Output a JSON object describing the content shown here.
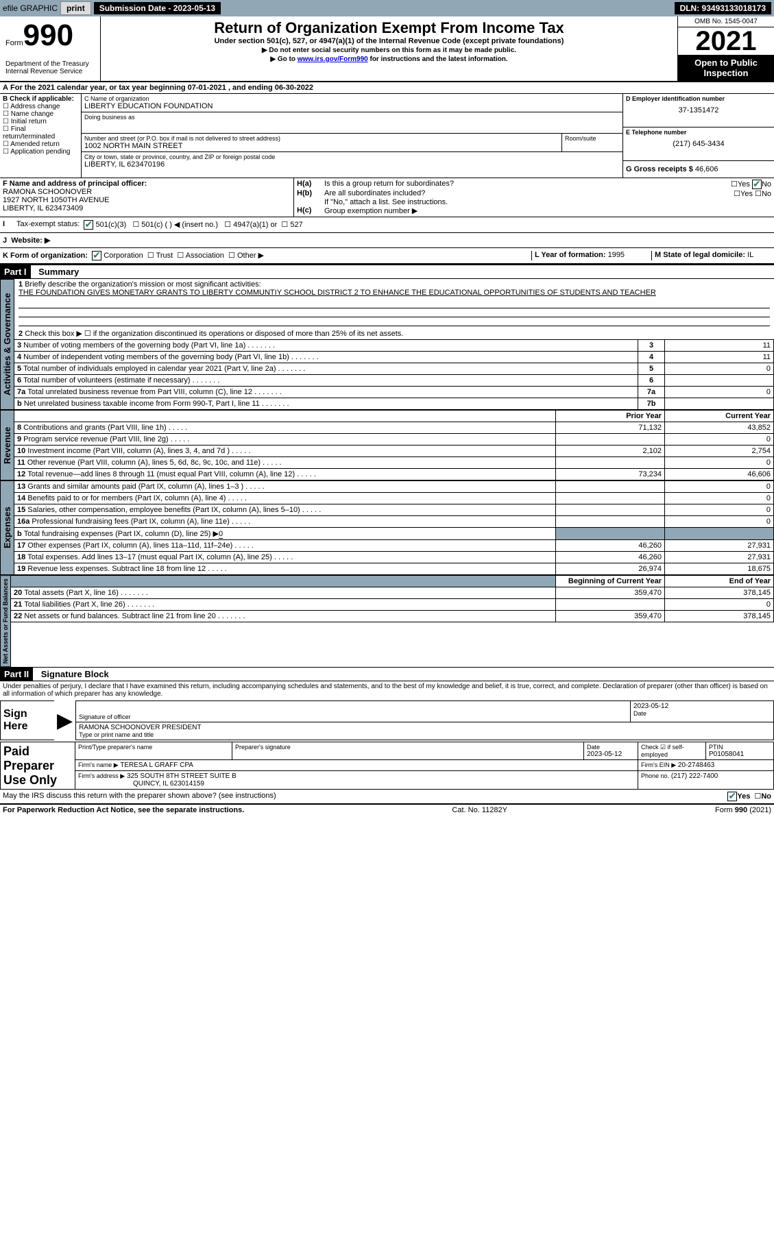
{
  "topbar": {
    "efile": "efile GRAPHIC",
    "print": "print",
    "sub_label": "Submission Date - 2023-05-13",
    "dln": "DLN: 93493133018173"
  },
  "header": {
    "form": "Form",
    "num": "990",
    "dept": "Department of the Treasury",
    "irs": "Internal Revenue Service",
    "title": "Return of Organization Exempt From Income Tax",
    "sub": "Under section 501(c), 527, or 4947(a)(1) of the Internal Revenue Code (except private foundations)",
    "note1": "▶ Do not enter social security numbers on this form as it may be made public.",
    "note2a": "▶ Go to ",
    "note2link": "www.irs.gov/Form990",
    "note2b": " for instructions and the latest information.",
    "omb": "OMB No. 1545-0047",
    "year": "2021",
    "open": "Open to Public Inspection"
  },
  "A": {
    "line": "For the 2021 calendar year, or tax year beginning 07-01-2021    , and ending 06-30-2022"
  },
  "B": {
    "label": "B Check if applicable:",
    "opts": [
      "Address change",
      "Name change",
      "Initial return",
      "Final return/terminated",
      "Amended return",
      "Application pending"
    ]
  },
  "C": {
    "label": "C Name of organization",
    "name": "LIBERTY EDUCATION FOUNDATION",
    "dba_label": "Doing business as",
    "dba": "",
    "addr_label": "Number and street (or P.O. box if mail is not delivered to street address)",
    "room": "Room/suite",
    "addr": "1002 NORTH MAIN STREET",
    "city_label": "City or town, state or province, country, and ZIP or foreign postal code",
    "city": "LIBERTY, IL  623470196"
  },
  "D": {
    "label": "D Employer identification number",
    "val": "37-1351472"
  },
  "E": {
    "label": "E Telephone number",
    "val": "(217) 645-3434"
  },
  "G": {
    "label": "G Gross receipts $",
    "val": "46,606"
  },
  "F": {
    "label": "F Name and address of principal officer:",
    "name": "RAMONA SCHOONOVER",
    "addr1": "1927 NORTH 1050TH AVENUE",
    "addr2": "LIBERTY, IL  623473409"
  },
  "H": {
    "a": "Is this a group return for subordinates?",
    "b": "Are all subordinates included?",
    "note": "If \"No,\" attach a list. See instructions.",
    "c": "Group exemption number ▶",
    "yes": "Yes",
    "no": "No"
  },
  "I": {
    "label": "Tax-exempt status:",
    "o1": "501(c)(3)",
    "o2": "501(c) (  ) ◀ (insert no.)",
    "o3": "4947(a)(1) or",
    "o4": "527"
  },
  "J": {
    "label": "Website: ▶"
  },
  "K": {
    "label": "K Form of organization:",
    "o1": "Corporation",
    "o2": "Trust",
    "o3": "Association",
    "o4": "Other ▶"
  },
  "L": {
    "label": "L Year of formation:",
    "val": "1995"
  },
  "M": {
    "label": "M State of legal domicile:",
    "val": "IL"
  },
  "part1": {
    "hdr": "Part I",
    "title": "Summary"
  },
  "s1": {
    "l1": "Briefly describe the organization's mission or most significant activities:",
    "mission": "THE FOUNDATION GIVES MONETARY GRANTS TO LIBERTY COMMUNTIY SCHOOL DISTRICT 2 TO ENHANCE THE EDUCATIONAL OPPORTUNITIES OF STUDENTS AND TEACHER",
    "l2": "Check this box ▶ ☐ if the organization discontinued its operations or disposed of more than 25% of its net assets.",
    "rows": [
      {
        "n": "3",
        "t": "Number of voting members of the governing body (Part VI, line 1a)",
        "box": "3",
        "v": "11"
      },
      {
        "n": "4",
        "t": "Number of independent voting members of the governing body (Part VI, line 1b)",
        "box": "4",
        "v": "11"
      },
      {
        "n": "5",
        "t": "Total number of individuals employed in calendar year 2021 (Part V, line 2a)",
        "box": "5",
        "v": "0"
      },
      {
        "n": "6",
        "t": "Total number of volunteers (estimate if necessary)",
        "box": "6",
        "v": ""
      },
      {
        "n": "7a",
        "t": "Total unrelated business revenue from Part VIII, column (C), line 12",
        "box": "7a",
        "v": "0"
      },
      {
        "n": "b",
        "t": "Net unrelated business taxable income from Form 990-T, Part I, line 11",
        "box": "7b",
        "v": ""
      }
    ],
    "py": "Prior Year",
    "cy": "Current Year",
    "rev": [
      {
        "n": "8",
        "t": "Contributions and grants (Part VIII, line 1h)",
        "p": "71,132",
        "c": "43,852"
      },
      {
        "n": "9",
        "t": "Program service revenue (Part VIII, line 2g)",
        "p": "",
        "c": "0"
      },
      {
        "n": "10",
        "t": "Investment income (Part VIII, column (A), lines 3, 4, and 7d )",
        "p": "2,102",
        "c": "2,754"
      },
      {
        "n": "11",
        "t": "Other revenue (Part VIII, column (A), lines 5, 6d, 8c, 9c, 10c, and 11e)",
        "p": "",
        "c": "0"
      },
      {
        "n": "12",
        "t": "Total revenue—add lines 8 through 11 (must equal Part VIII, column (A), line 12)",
        "p": "73,234",
        "c": "46,606"
      }
    ],
    "exp": [
      {
        "n": "13",
        "t": "Grants and similar amounts paid (Part IX, column (A), lines 1–3 )",
        "p": "",
        "c": "0"
      },
      {
        "n": "14",
        "t": "Benefits paid to or for members (Part IX, column (A), line 4)",
        "p": "",
        "c": "0"
      },
      {
        "n": "15",
        "t": "Salaries, other compensation, employee benefits (Part IX, column (A), lines 5–10)",
        "p": "",
        "c": "0"
      },
      {
        "n": "16a",
        "t": "Professional fundraising fees (Part IX, column (A), line 11e)",
        "p": "",
        "c": "0"
      },
      {
        "n": "b",
        "t": "Total fundraising expenses (Part IX, column (D), line 25) ▶",
        "sub": "0",
        "shade": true
      },
      {
        "n": "17",
        "t": "Other expenses (Part IX, column (A), lines 11a–11d, 11f–24e)",
        "p": "46,260",
        "c": "27,931"
      },
      {
        "n": "18",
        "t": "Total expenses. Add lines 13–17 (must equal Part IX, column (A), line 25)",
        "p": "46,260",
        "c": "27,931"
      },
      {
        "n": "19",
        "t": "Revenue less expenses. Subtract line 18 from line 12",
        "p": "26,974",
        "c": "18,675"
      }
    ],
    "bcy": "Beginning of Current Year",
    "ecy": "End of Year",
    "net": [
      {
        "n": "20",
        "t": "Total assets (Part X, line 16)",
        "p": "359,470",
        "c": "378,145"
      },
      {
        "n": "21",
        "t": "Total liabilities (Part X, line 26)",
        "p": "",
        "c": "0"
      },
      {
        "n": "22",
        "t": "Net assets or fund balances. Subtract line 21 from line 20",
        "p": "359,470",
        "c": "378,145"
      }
    ],
    "vtabs": [
      "Activities & Governance",
      "Revenue",
      "Expenses",
      "Net Assets or Fund Balances"
    ]
  },
  "part2": {
    "hdr": "Part II",
    "title": "Signature Block",
    "decl": "Under penalties of perjury, I declare that I have examined this return, including accompanying schedules and statements, and to the best of my knowledge and belief, it is true, correct, and complete. Declaration of preparer (other than officer) is based on all information of which preparer has any knowledge."
  },
  "sign": {
    "here": "Sign Here",
    "sig": "Signature of officer",
    "date": "Date",
    "dateval": "2023-05-12",
    "name": "RAMONA SCHOONOVER  PRESIDENT",
    "type": "Type or print name and title"
  },
  "prep": {
    "title": "Paid Preparer Use Only",
    "h1": "Print/Type preparer's name",
    "h2": "Preparer's signature",
    "h3": "Date",
    "h3v": "2023-05-12",
    "h4": "Check ☑ if self-employed",
    "h5": "PTIN",
    "h5v": "P01058041",
    "firm": "Firm's name    ▶",
    "firmv": "TERESA L GRAFF CPA",
    "ein": "Firm's EIN ▶",
    "einv": "20-2748463",
    "addr": "Firm's address ▶",
    "addrv1": "325 SOUTH 8TH STREET SUITE B",
    "addrv2": "QUINCY, IL  623014159",
    "ph": "Phone no.",
    "phv": "(217) 222-7400"
  },
  "footer": {
    "q": "May the IRS discuss this return with the preparer shown above? (see instructions)",
    "yes": "Yes",
    "no": "No",
    "pra": "For Paperwork Reduction Act Notice, see the separate instructions.",
    "cat": "Cat. No. 11282Y",
    "form": "Form 990 (2021)"
  }
}
